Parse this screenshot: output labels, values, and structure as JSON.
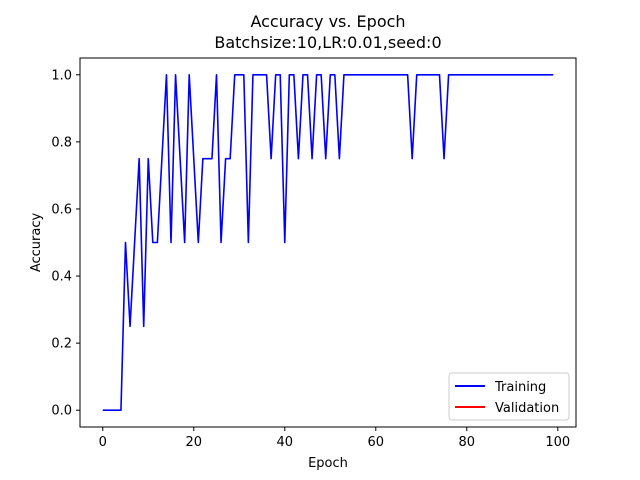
{
  "chart_data": {
    "type": "line",
    "title": "Accuracy vs. Epoch",
    "subtitle": "Batchsize:10,LR:0.01,seed:0",
    "xlabel": "Epoch",
    "ylabel": "Accuracy",
    "xlim": [
      -5,
      104
    ],
    "ylim": [
      -0.05,
      1.05
    ],
    "xticks": [
      0,
      20,
      40,
      60,
      80,
      100
    ],
    "yticks": [
      0.0,
      0.2,
      0.4,
      0.6,
      0.8,
      1.0
    ],
    "ytick_labels": [
      "0.0",
      "0.2",
      "0.4",
      "0.6",
      "0.8",
      "1.0"
    ],
    "grid": false,
    "legend_position": "lower-right",
    "series": [
      {
        "name": "Training",
        "color": "#0000ff",
        "x": [
          0,
          1,
          2,
          3,
          4,
          5,
          6,
          7,
          8,
          9,
          10,
          11,
          12,
          13,
          14,
          15,
          16,
          17,
          18,
          19,
          20,
          21,
          22,
          23,
          24,
          25,
          26,
          27,
          28,
          29,
          30,
          31,
          32,
          33,
          34,
          35,
          36,
          37,
          38,
          39,
          40,
          41,
          42,
          43,
          44,
          45,
          46,
          47,
          48,
          49,
          50,
          51,
          52,
          53,
          54,
          55,
          56,
          57,
          58,
          59,
          60,
          61,
          62,
          63,
          64,
          65,
          66,
          67,
          68,
          69,
          70,
          71,
          72,
          73,
          74,
          75,
          76,
          77,
          78,
          79,
          80,
          81,
          82,
          83,
          84,
          85,
          86,
          87,
          88,
          89,
          90,
          91,
          92,
          93,
          94,
          95,
          96,
          97,
          98,
          99
        ],
        "values": [
          0,
          0,
          0,
          0,
          0,
          0.5,
          0.25,
          0.5,
          0.75,
          0.25,
          0.75,
          0.5,
          0.5,
          0.75,
          1.0,
          0.5,
          1.0,
          0.75,
          0.5,
          1.0,
          0.75,
          0.5,
          0.75,
          0.75,
          0.75,
          1.0,
          0.5,
          0.75,
          0.75,
          1.0,
          1.0,
          1.0,
          0.5,
          1.0,
          1.0,
          1.0,
          1.0,
          0.75,
          1.0,
          1.0,
          0.5,
          1.0,
          1.0,
          0.75,
          1.0,
          1.0,
          0.75,
          1.0,
          1.0,
          0.75,
          1.0,
          1.0,
          0.75,
          1.0,
          1.0,
          1.0,
          1.0,
          1.0,
          1.0,
          1.0,
          1.0,
          1.0,
          1.0,
          1.0,
          1.0,
          1.0,
          1.0,
          1.0,
          0.75,
          1.0,
          1.0,
          1.0,
          1.0,
          1.0,
          1.0,
          0.75,
          1.0,
          1.0,
          1.0,
          1.0,
          1.0,
          1.0,
          1.0,
          1.0,
          1.0,
          1.0,
          1.0,
          1.0,
          1.0,
          1.0,
          1.0,
          1.0,
          1.0,
          1.0,
          1.0,
          1.0,
          1.0,
          1.0,
          1.0,
          1.0
        ]
      },
      {
        "name": "Validation",
        "color": "#ff0000",
        "x": [],
        "values": []
      }
    ]
  }
}
